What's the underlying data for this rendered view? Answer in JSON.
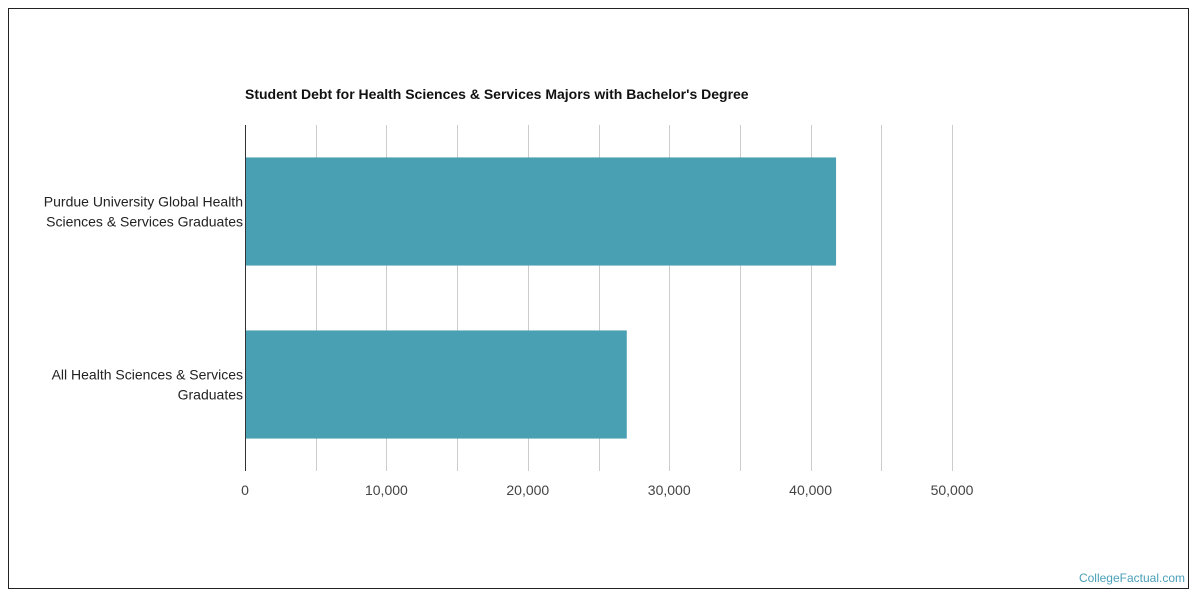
{
  "chart_data": {
    "type": "bar",
    "orientation": "horizontal",
    "title": "Student Debt for Health Sciences & Services Majors with Bachelor's Degree",
    "categories": [
      [
        "Purdue University Global Health",
        "Sciences & Services Graduates"
      ],
      [
        "All Health Sciences & Services",
        "Graduates"
      ]
    ],
    "values": [
      41800,
      27000
    ],
    "xlim": [
      0,
      50000
    ],
    "ticks": [
      0,
      10000,
      20000,
      30000,
      40000,
      50000
    ],
    "tick_labels": [
      "0",
      "10,000",
      "20,000",
      "30,000",
      "40,000",
      "50,000"
    ],
    "grid": true,
    "bar_color": "#4aa0b3",
    "grid_color": "#cccccc"
  },
  "watermark": "CollegeFactual.com"
}
